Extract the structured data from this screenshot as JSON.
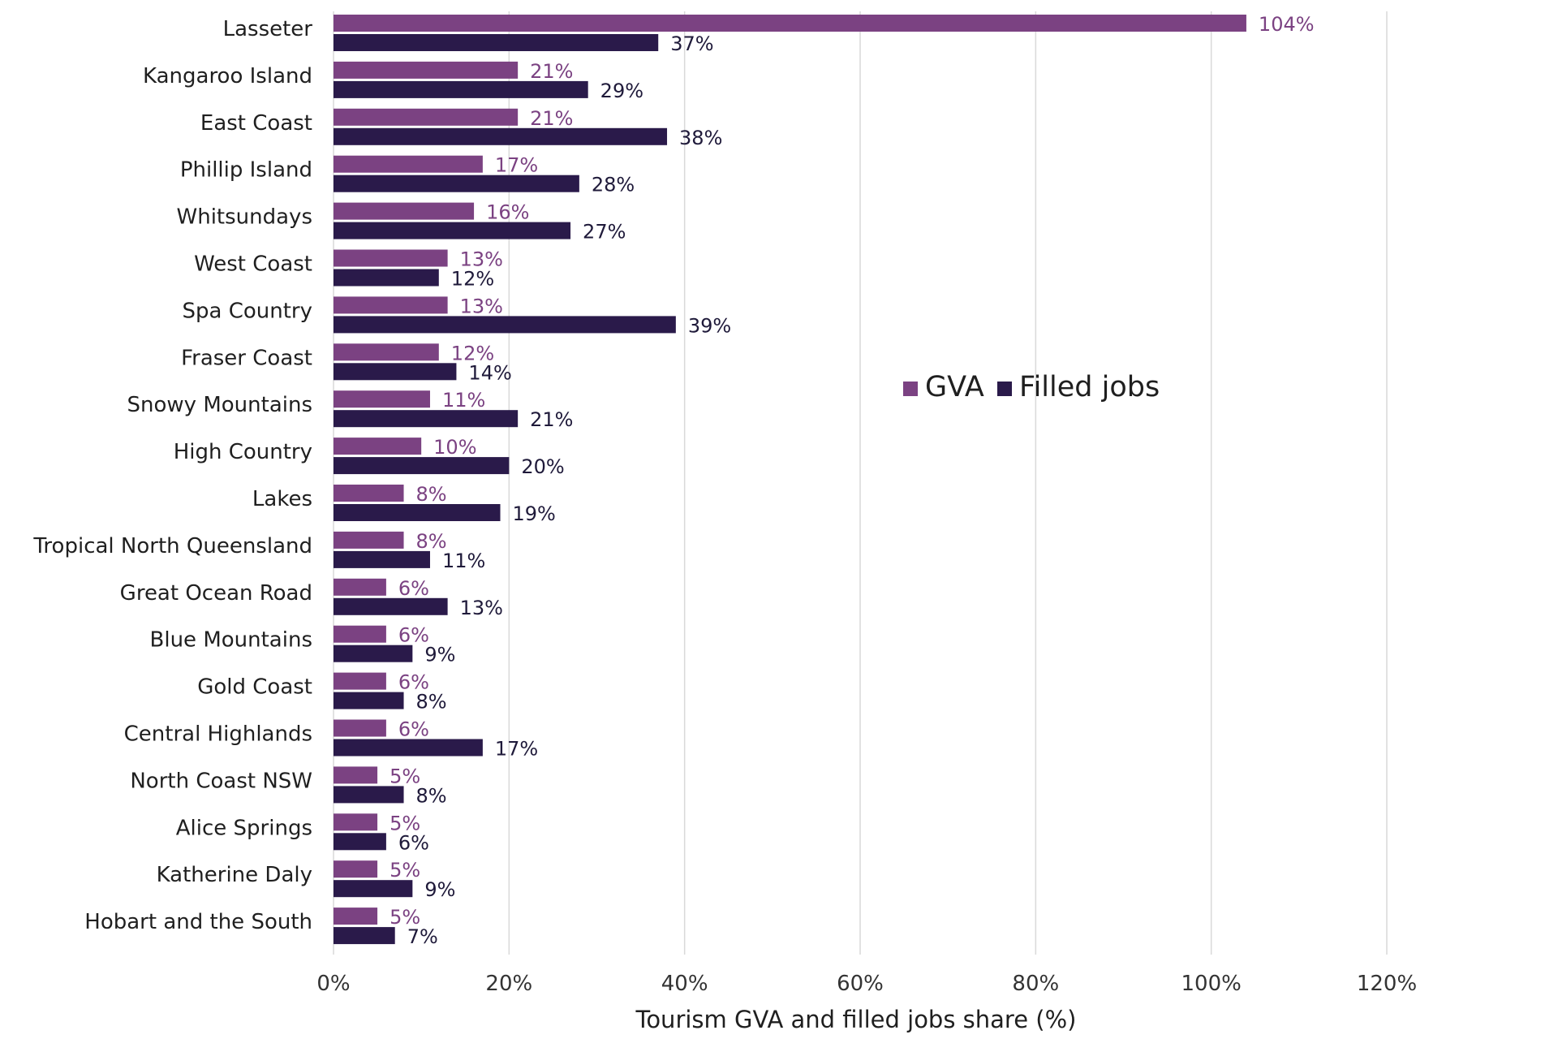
{
  "chart_data": {
    "type": "bar",
    "orientation": "horizontal",
    "categories": [
      "Lasseter",
      "Kangaroo Island",
      "East Coast",
      "Phillip Island",
      "Whitsundays",
      "West Coast",
      "Spa Country",
      "Fraser Coast",
      "Snowy Mountains",
      "High Country",
      "Lakes",
      "Tropical North Queensland",
      "Great Ocean Road",
      "Blue Mountains",
      "Gold Coast",
      "Central Highlands",
      "North Coast NSW",
      "Alice Springs",
      "Katherine Daly",
      "Hobart and the South"
    ],
    "series": [
      {
        "name": "GVA",
        "color": "#7b4282",
        "values": [
          104,
          21,
          21,
          17,
          16,
          13,
          13,
          12,
          11,
          10,
          8,
          8,
          6,
          6,
          6,
          6,
          5,
          5,
          5,
          5
        ],
        "labels": [
          "104%",
          "21%",
          "21%",
          "17%",
          "16%",
          "13%",
          "13%",
          "12%",
          "11%",
          "10%",
          "8%",
          "8%",
          "6%",
          "6%",
          "6%",
          "6%",
          "5%",
          "5%",
          "5%",
          "5%"
        ]
      },
      {
        "name": "Filled jobs",
        "color": "#2a1a4a",
        "values": [
          37,
          29,
          38,
          28,
          27,
          12,
          39,
          14,
          21,
          20,
          19,
          11,
          13,
          9,
          8,
          17,
          8,
          6,
          9,
          7
        ],
        "labels": [
          "37%",
          "29%",
          "38%",
          "28%",
          "27%",
          "12%",
          "39%",
          "14%",
          "21%",
          "20%",
          "19%",
          "11%",
          "13%",
          "9%",
          "8%",
          "17%",
          "8%",
          "6%",
          "9%",
          "7%"
        ]
      }
    ],
    "xlim": [
      0,
      120
    ],
    "xticks": [
      0,
      20,
      40,
      60,
      80,
      100,
      120
    ],
    "xtick_labels": [
      "0%",
      "20%",
      "40%",
      "60%",
      "80%",
      "100%",
      "120%"
    ],
    "xlabel": "Tourism GVA and filled jobs share (%)",
    "ylabel": "",
    "title": "",
    "grid": "vertical",
    "legend_position": "center-right"
  },
  "legend": {
    "items": [
      {
        "label": "GVA",
        "color": "#7b4282"
      },
      {
        "label": "Filled jobs",
        "color": "#2a1a4a"
      }
    ]
  }
}
